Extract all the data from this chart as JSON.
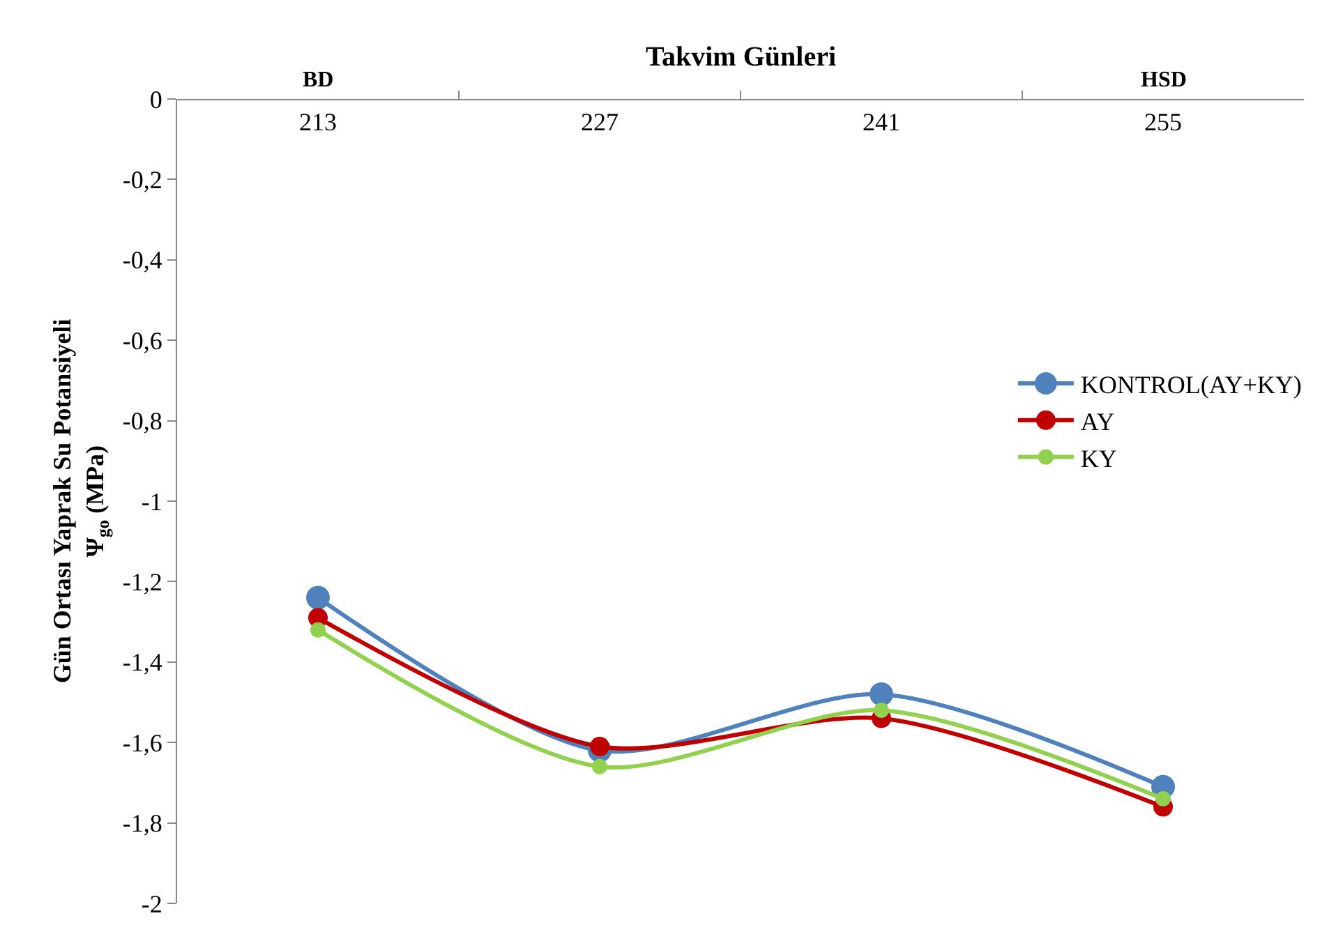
{
  "chart_data": {
    "type": "line",
    "xlabel": "Takvim Günleri",
    "ylabel": "Gün Ortası Yaprak Su Potansiyeli\nΨ$_{go}$ (MPa)",
    "categories": [
      "213",
      "227",
      "241",
      "255"
    ],
    "series": [
      {
        "name": "KONTROL(AY+KY)",
        "color": "#4f81bd",
        "values": [
          -1.24,
          -1.62,
          -1.48,
          -1.71
        ]
      },
      {
        "name": "AY",
        "color": "#c00000",
        "values": [
          -1.29,
          -1.61,
          -1.54,
          -1.76
        ]
      },
      {
        "name": "KY",
        "color": "#92d050",
        "values": [
          -1.32,
          -1.66,
          -1.52,
          -1.74
        ]
      }
    ],
    "ylim": [
      -2,
      0
    ],
    "yticks": [
      {
        "value": -2,
        "label": "-2"
      },
      {
        "value": -1.8,
        "label": "-1,8"
      },
      {
        "value": -1.6,
        "label": "-1,6"
      },
      {
        "value": -1.4,
        "label": "-1,4"
      },
      {
        "value": -1.2,
        "label": "-1,2"
      },
      {
        "value": -1,
        "label": "-1"
      },
      {
        "value": -0.8,
        "label": "-0,8"
      },
      {
        "value": -0.6,
        "label": "-0,6"
      },
      {
        "value": -0.4,
        "label": "-0,4"
      },
      {
        "value": -0.2,
        "label": "-0,2"
      },
      {
        "value": 0,
        "label": "0"
      }
    ],
    "annotations": [
      "BD",
      "HSD"
    ],
    "marker": "circle",
    "line_style": "solid",
    "legend": "right"
  }
}
